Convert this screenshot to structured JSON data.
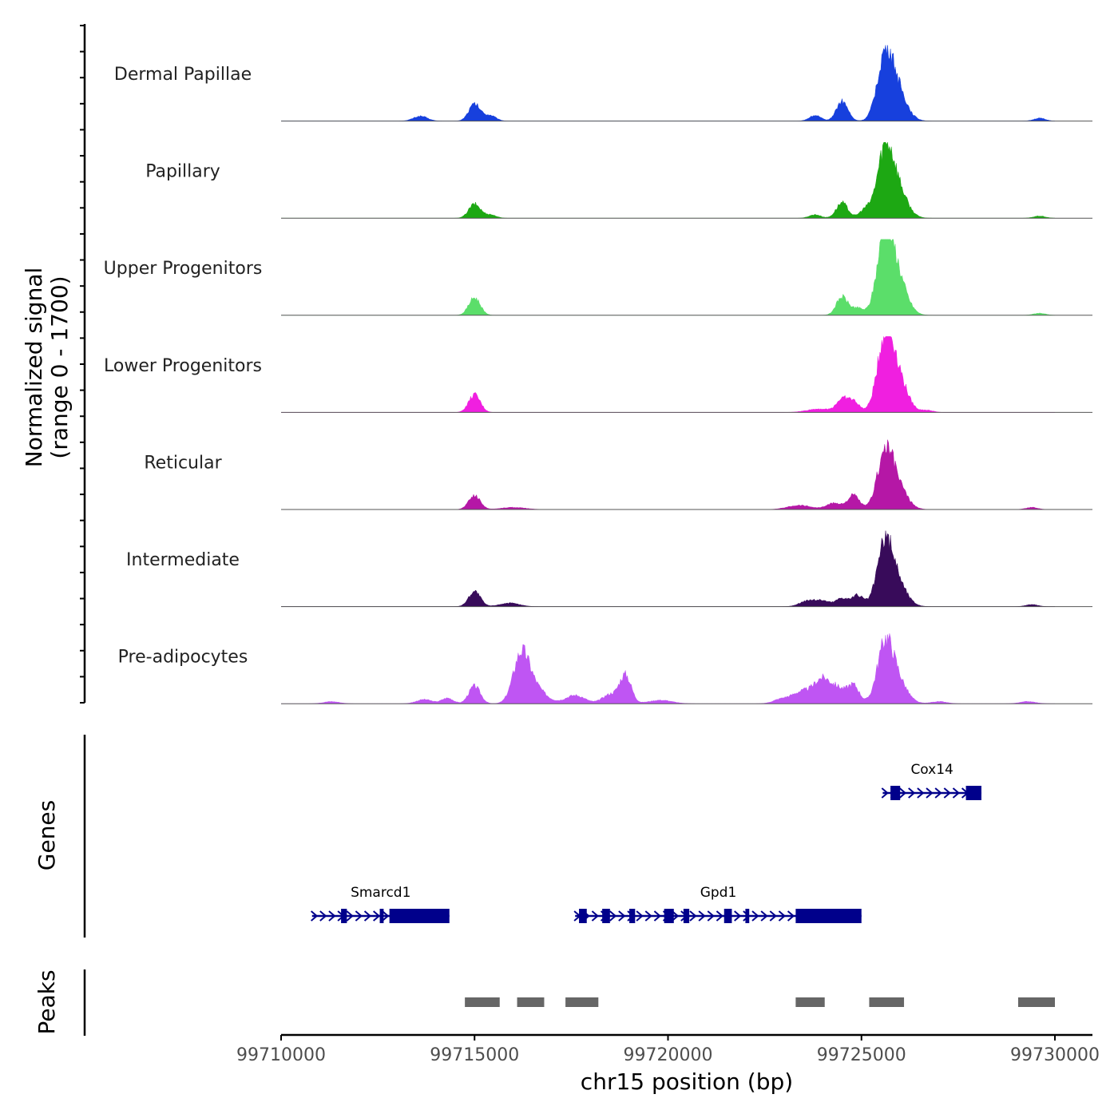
{
  "chart_data": {
    "type": "area",
    "title": "",
    "xlabel": "chr15 position (bp)",
    "ylabel": "Normalized signal\n(range 0 - 1700)",
    "ylabel_lines": [
      "Normalized signal",
      "(range 0 - 1700)"
    ],
    "xlim": [
      99710000,
      99731000
    ],
    "ylim": [
      0,
      1700
    ],
    "x_ticks": [
      99710000,
      99715000,
      99720000,
      99725000,
      99730000
    ],
    "x_tick_labels": [
      "99710000",
      "99715000",
      "99720000",
      "99725000",
      "99730000"
    ],
    "series": [
      {
        "name": "Dermal Papillae",
        "color": "#1740dd",
        "peaks": [
          [
            99713600,
            0.07,
            180
          ],
          [
            99715000,
            0.24,
            150
          ],
          [
            99715400,
            0.08,
            150
          ],
          [
            99723800,
            0.08,
            150
          ],
          [
            99724500,
            0.28,
            150
          ],
          [
            99725600,
            0.8,
            200
          ],
          [
            99725900,
            0.45,
            250
          ],
          [
            99729600,
            0.04,
            150
          ]
        ]
      },
      {
        "name": "Papillary",
        "color": "#1da813",
        "peaks": [
          [
            99715000,
            0.2,
            150
          ],
          [
            99715400,
            0.05,
            150
          ],
          [
            99723800,
            0.05,
            150
          ],
          [
            99724500,
            0.22,
            150
          ],
          [
            99725100,
            0.12,
            150
          ],
          [
            99725600,
            0.85,
            200
          ],
          [
            99725900,
            0.45,
            250
          ],
          [
            99729600,
            0.03,
            150
          ]
        ]
      },
      {
        "name": "Upper Progenitors",
        "color": "#5bde6a",
        "peaks": [
          [
            99715000,
            0.25,
            150
          ],
          [
            99724500,
            0.26,
            150
          ],
          [
            99724900,
            0.1,
            150
          ],
          [
            99725600,
            1.0,
            200
          ],
          [
            99725900,
            0.55,
            250
          ],
          [
            99729600,
            0.03,
            150
          ]
        ]
      },
      {
        "name": "Lower Progenitors",
        "color": "#f01fe0",
        "peaks": [
          [
            99715000,
            0.25,
            150
          ],
          [
            99723900,
            0.05,
            300
          ],
          [
            99724500,
            0.18,
            150
          ],
          [
            99724800,
            0.15,
            150
          ],
          [
            99725600,
            0.9,
            200
          ],
          [
            99725900,
            0.55,
            250
          ],
          [
            99726700,
            0.03,
            150
          ]
        ]
      },
      {
        "name": "Reticular",
        "color": "#b517a6",
        "peaks": [
          [
            99715000,
            0.2,
            150
          ],
          [
            99716000,
            0.03,
            300
          ],
          [
            99723400,
            0.06,
            300
          ],
          [
            99724300,
            0.09,
            200
          ],
          [
            99724800,
            0.2,
            150
          ],
          [
            99725600,
            0.7,
            200
          ],
          [
            99725900,
            0.35,
            250
          ],
          [
            99729400,
            0.03,
            150
          ]
        ]
      },
      {
        "name": "Intermediate",
        "color": "#380b5a",
        "peaks": [
          [
            99715000,
            0.22,
            150
          ],
          [
            99715900,
            0.05,
            250
          ],
          [
            99723600,
            0.08,
            200
          ],
          [
            99724000,
            0.08,
            200
          ],
          [
            99724500,
            0.12,
            150
          ],
          [
            99724900,
            0.16,
            150
          ],
          [
            99725600,
            0.8,
            200
          ],
          [
            99725900,
            0.35,
            250
          ],
          [
            99729400,
            0.03,
            150
          ]
        ]
      },
      {
        "name": "Pre-adipocytes",
        "color": "#bf55f3",
        "peaks": [
          [
            99711300,
            0.03,
            200
          ],
          [
            99713700,
            0.06,
            200
          ],
          [
            99714300,
            0.08,
            150
          ],
          [
            99715000,
            0.25,
            150
          ],
          [
            99716200,
            0.6,
            200
          ],
          [
            99716500,
            0.25,
            300
          ],
          [
            99717600,
            0.12,
            250
          ],
          [
            99718500,
            0.13,
            200
          ],
          [
            99718900,
            0.4,
            150
          ],
          [
            99719800,
            0.05,
            300
          ],
          [
            99722900,
            0.05,
            200
          ],
          [
            99723500,
            0.18,
            300
          ],
          [
            99724000,
            0.3,
            200
          ],
          [
            99724400,
            0.2,
            200
          ],
          [
            99724800,
            0.25,
            150
          ],
          [
            99725600,
            0.75,
            200
          ],
          [
            99725900,
            0.35,
            250
          ],
          [
            99727000,
            0.03,
            200
          ],
          [
            99729300,
            0.03,
            200
          ]
        ]
      }
    ],
    "genes": [
      {
        "name": "Cox14",
        "start": 99725550,
        "end": 99728100,
        "strand": "+",
        "row": 0,
        "exons": [
          [
            99725750,
            99726000
          ],
          [
            99727700,
            99728100
          ]
        ]
      },
      {
        "name": "Smarcd1",
        "start": 99710800,
        "end": 99714350,
        "strand": "+",
        "row": 1,
        "exons": [
          [
            99711550,
            99711700
          ],
          [
            99712550,
            99712650
          ],
          [
            99712800,
            99714350
          ]
        ]
      },
      {
        "name": "Gpd1",
        "start": 99717600,
        "end": 99725000,
        "strand": "+",
        "row": 1,
        "exons": [
          [
            99717700,
            99717900
          ],
          [
            99718300,
            99718500
          ],
          [
            99719000,
            99719150
          ],
          [
            99719900,
            99720150
          ],
          [
            99720400,
            99720550
          ],
          [
            99721450,
            99721650
          ],
          [
            99722000,
            99722100
          ],
          [
            99723300,
            99725000
          ]
        ]
      }
    ],
    "peaks_track": [
      [
        99714750,
        99715650
      ],
      [
        99716100,
        99716800
      ],
      [
        99717350,
        99718200
      ],
      [
        99723300,
        99724050
      ],
      [
        99725200,
        99726100
      ],
      [
        99729050,
        99730000
      ]
    ],
    "panel_labels": [
      "Genes",
      "Peaks"
    ]
  }
}
